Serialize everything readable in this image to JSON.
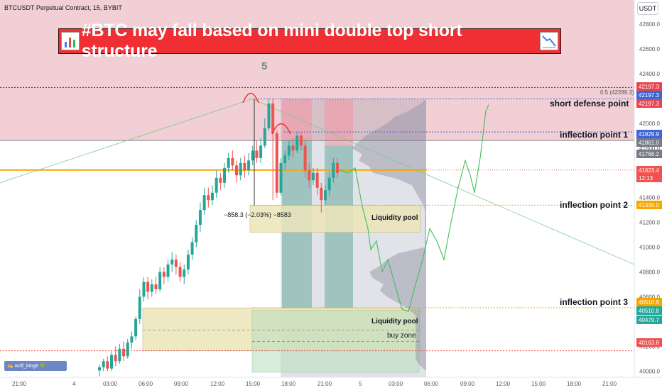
{
  "header": {
    "symbol": "BTCUSDT Perpetual Contract, 15, BYBIT",
    "currency_button": "USDT"
  },
  "banner": {
    "title": "#BTC may fall based on mini double top short structure"
  },
  "annotations": {
    "wave_number": "5",
    "fib_label": "0.5 (42289.3)",
    "short_defense": "short defense point",
    "inflection_1": "inflection point 1",
    "inflection_2": "inflection point 2",
    "inflection_3": "inflection point 3",
    "liquidity_pool_upper": "Liquidity pool",
    "liquidity_pool_lower": "Liquidity pool",
    "buy_zone": "buy zone",
    "measure": "−858.3 (−2.03%) −8583"
  },
  "author_badge": "✍ wolf_king8 💚",
  "colors": {
    "up": "#26a69a",
    "down": "#ef5350",
    "red_zone": "#e9b5bc",
    "current_price": "#f57c00"
  },
  "chart_data": {
    "type": "candlestick",
    "ylim": [
      39950,
      42950
    ],
    "y_ticks": [
      40000,
      40200,
      40400,
      40600,
      40800,
      41000,
      41200,
      41400,
      41600,
      41800,
      42000,
      42200,
      42400,
      42600,
      42800
    ],
    "x_ticks": [
      "21:00",
      "4",
      "03:00",
      "06:00",
      "09:00",
      "12:00",
      "15:00",
      "18:00",
      "21:00",
      "5",
      "03:00",
      "06:00",
      "09:00",
      "12:00",
      "15:00",
      "18:00",
      "21:00"
    ],
    "price_labels": [
      {
        "value": "42197.3",
        "color": "#e8464f"
      },
      {
        "value": "42197.3",
        "color": "#3f66d8"
      },
      {
        "value": "42197.3",
        "color": "#e8464f"
      },
      {
        "value": "41929.9",
        "color": "#3f66d8"
      },
      {
        "value": "41861.0",
        "color": "#787b86"
      },
      {
        "value": "41768.2",
        "color": "#787b86"
      },
      {
        "value": "41623.4",
        "color": "#ef5350"
      },
      {
        "value": "12:13",
        "color": "#ef5350"
      },
      {
        "value": "41339.0",
        "color": "#f7a600"
      },
      {
        "value": "40510.8",
        "color": "#f7a600"
      },
      {
        "value": "40510.8",
        "color": "#22a89b"
      },
      {
        "value": "40479.7",
        "color": "#22a89b"
      },
      {
        "value": "40163.8",
        "color": "#ef5350"
      }
    ],
    "levels": {
      "fib_05": 42289.3,
      "short_defense": 42197.3,
      "inflection_1": 41929.9,
      "inflection_2": 41339.0,
      "inflection_3": 40510.8,
      "current": 41623.4,
      "red_dotted": 40163.8,
      "grey_line": 41861.0
    },
    "candles": [
      [
        40005,
        40030,
        39960,
        40050
      ],
      [
        40030,
        40080,
        40000,
        40100
      ],
      [
        40080,
        40020,
        40000,
        40120
      ],
      [
        40020,
        40130,
        40000,
        40160
      ],
      [
        40130,
        40080,
        40040,
        40200
      ],
      [
        40080,
        40180,
        40060,
        40220
      ],
      [
        40180,
        40120,
        40080,
        40240
      ],
      [
        40120,
        40230,
        40100,
        40260
      ],
      [
        40230,
        40280,
        40180,
        40320
      ],
      [
        40280,
        40420,
        40250,
        40440
      ],
      [
        40420,
        40600,
        40380,
        40660
      ],
      [
        40600,
        40720,
        40560,
        40760
      ],
      [
        40720,
        40640,
        40580,
        40760
      ],
      [
        40640,
        40700,
        40600,
        40740
      ],
      [
        40700,
        40660,
        40620,
        40760
      ],
      [
        40660,
        40800,
        40640,
        40840
      ],
      [
        40800,
        40760,
        40700,
        40840
      ],
      [
        40760,
        40860,
        40720,
        40900
      ],
      [
        40860,
        40900,
        40800,
        40960
      ],
      [
        40900,
        40840,
        40780,
        40940
      ],
      [
        40840,
        40760,
        40720,
        40880
      ],
      [
        40760,
        40820,
        40700,
        40860
      ],
      [
        40820,
        40940,
        40780,
        40980
      ],
      [
        40940,
        41040,
        40900,
        41080
      ],
      [
        41040,
        41180,
        41000,
        41220
      ],
      [
        41180,
        41300,
        41120,
        41360
      ],
      [
        41300,
        41420,
        41260,
        41480
      ],
      [
        41420,
        41380,
        41320,
        41480
      ],
      [
        41380,
        41440,
        41340,
        41500
      ],
      [
        41440,
        41560,
        41400,
        41620
      ],
      [
        41560,
        41520,
        41460,
        41600
      ],
      [
        41520,
        41640,
        41480,
        41680
      ],
      [
        41640,
        41720,
        41600,
        41760
      ],
      [
        41720,
        41660,
        41620,
        41780
      ],
      [
        41660,
        41580,
        41520,
        41700
      ],
      [
        41580,
        41680,
        41540,
        41720
      ],
      [
        41680,
        41620,
        41560,
        41740
      ],
      [
        41620,
        41700,
        41580,
        41760
      ],
      [
        41700,
        41780,
        41660,
        41820
      ],
      [
        41780,
        41720,
        41680,
        41860
      ],
      [
        41720,
        41820,
        41680,
        41880
      ],
      [
        41820,
        41960,
        41800,
        42040
      ],
      [
        41960,
        42160,
        41940,
        42197
      ],
      [
        42160,
        41920,
        41380,
        42197
      ],
      [
        41920,
        41440,
        41400,
        41940
      ],
      [
        41440,
        41680,
        41420,
        41720
      ],
      [
        41680,
        41740,
        41620,
        41780
      ],
      [
        41740,
        41820,
        41700,
        41860
      ],
      [
        41820,
        41780,
        41720,
        41880
      ],
      [
        41780,
        41900,
        41760,
        41930
      ],
      [
        41900,
        41820,
        41780,
        41920
      ],
      [
        41820,
        41620,
        41560,
        41860
      ],
      [
        41620,
        41540,
        41480,
        41680
      ],
      [
        41540,
        41600,
        41500,
        41640
      ],
      [
        41600,
        41480,
        41420,
        41640
      ],
      [
        41480,
        41380,
        41280,
        41520
      ],
      [
        41380,
        41460,
        41340,
        41500
      ],
      [
        41460,
        41560,
        41420,
        41600
      ],
      [
        41560,
        41680,
        41520,
        41720
      ],
      [
        41680,
        41600,
        41560,
        41720
      ]
    ]
  }
}
